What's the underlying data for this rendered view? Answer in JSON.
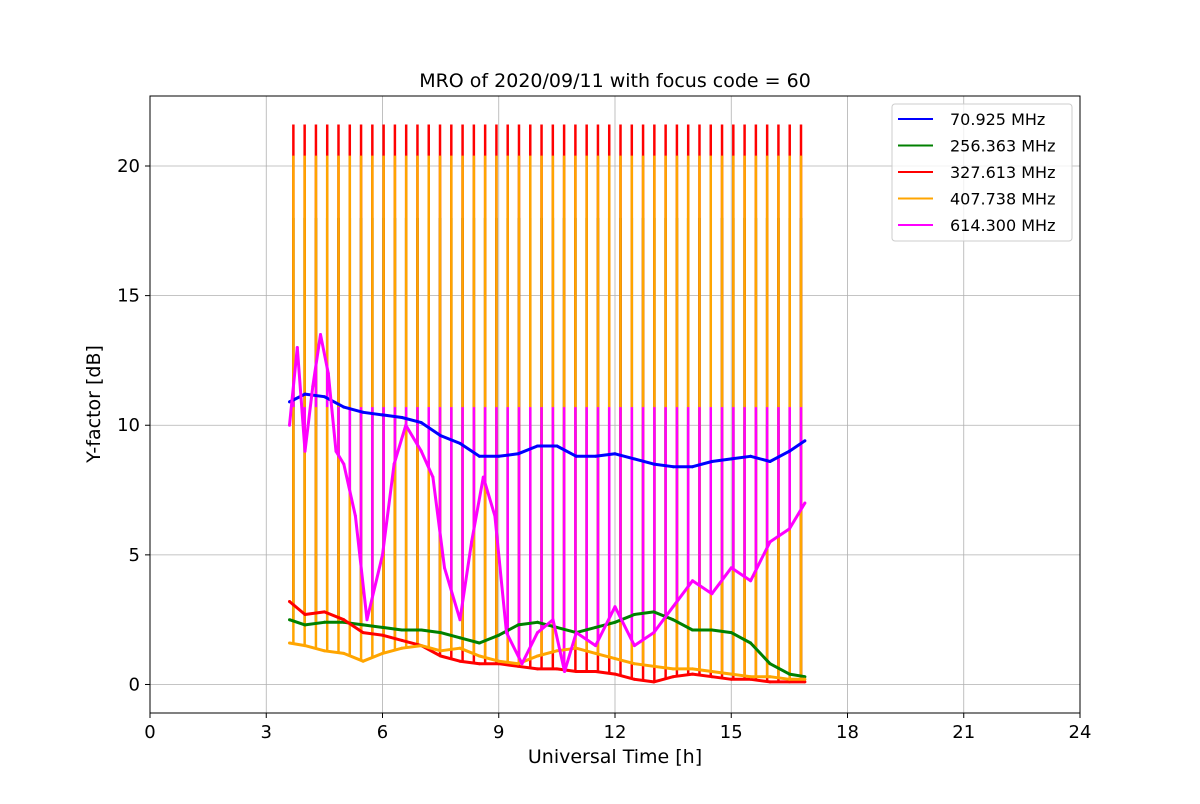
{
  "chart_data": {
    "type": "line",
    "title": "MRO of 2020/09/11 with focus code = 60",
    "xlabel": "Universal Time [h]",
    "ylabel": "Y-factor [dB]",
    "xlim": [
      0,
      24
    ],
    "ylim": [
      -1.1,
      22.7
    ],
    "xticks": [
      0,
      3,
      6,
      9,
      12,
      15,
      18,
      21,
      24
    ],
    "yticks": [
      0,
      5,
      10,
      15,
      20
    ],
    "grid": true,
    "legend_position": "top-right",
    "series": [
      {
        "name": " 70.925 MHz",
        "color": "#0000ff",
        "x": [
          3.6,
          4.0,
          4.5,
          5.0,
          5.5,
          6.0,
          6.5,
          7.0,
          7.5,
          8.0,
          8.5,
          9.0,
          9.5,
          10.0,
          10.5,
          11.0,
          11.5,
          12.0,
          12.5,
          13.0,
          13.5,
          14.0,
          14.5,
          15.0,
          15.5,
          16.0,
          16.5,
          16.9
        ],
        "y": [
          10.9,
          11.2,
          11.1,
          10.7,
          10.5,
          10.4,
          10.3,
          10.1,
          9.6,
          9.3,
          8.8,
          8.8,
          8.9,
          9.2,
          9.2,
          8.8,
          8.8,
          8.9,
          8.7,
          8.5,
          8.4,
          8.4,
          8.6,
          8.7,
          8.8,
          8.6,
          9.0,
          9.4
        ]
      },
      {
        "name": "256.363 MHz",
        "color": "#008000",
        "x": [
          3.6,
          4.0,
          4.5,
          5.0,
          5.5,
          6.0,
          6.5,
          7.0,
          7.5,
          8.0,
          8.5,
          9.0,
          9.5,
          10.0,
          10.5,
          11.0,
          11.5,
          12.0,
          12.5,
          13.0,
          13.5,
          14.0,
          14.5,
          15.0,
          15.5,
          16.0,
          16.5,
          16.9
        ],
        "y": [
          2.5,
          2.3,
          2.4,
          2.4,
          2.3,
          2.2,
          2.1,
          2.1,
          2.0,
          1.8,
          1.6,
          1.9,
          2.3,
          2.4,
          2.2,
          2.0,
          2.2,
          2.4,
          2.7,
          2.8,
          2.5,
          2.1,
          2.1,
          2.0,
          1.6,
          0.8,
          0.4,
          0.3
        ]
      },
      {
        "name": "327.613 MHz",
        "color": "#ff0000",
        "x": [
          3.6,
          4.0,
          4.5,
          5.0,
          5.5,
          6.0,
          6.5,
          7.0,
          7.5,
          8.0,
          8.5,
          9.0,
          9.5,
          10.0,
          10.5,
          11.0,
          11.5,
          12.0,
          12.5,
          13.0,
          13.5,
          14.0,
          14.5,
          15.0,
          15.5,
          16.0,
          16.5,
          16.9
        ],
        "y": [
          3.2,
          2.7,
          2.8,
          2.5,
          2.0,
          1.9,
          1.7,
          1.5,
          1.1,
          0.9,
          0.8,
          0.8,
          0.7,
          0.6,
          0.6,
          0.5,
          0.5,
          0.4,
          0.2,
          0.1,
          0.3,
          0.4,
          0.3,
          0.2,
          0.2,
          0.1,
          0.1,
          0.1
        ]
      },
      {
        "name": "407.738 MHz",
        "color": "#ffa500",
        "x": [
          3.6,
          4.0,
          4.5,
          5.0,
          5.5,
          6.0,
          6.5,
          7.0,
          7.5,
          8.0,
          8.5,
          9.0,
          9.5,
          10.0,
          10.5,
          11.0,
          11.5,
          12.0,
          12.5,
          13.0,
          13.5,
          14.0,
          14.5,
          15.0,
          15.5,
          16.0,
          16.5,
          16.9
        ],
        "y": [
          1.6,
          1.5,
          1.3,
          1.2,
          0.9,
          1.2,
          1.4,
          1.5,
          1.3,
          1.4,
          1.1,
          0.9,
          0.8,
          1.1,
          1.3,
          1.4,
          1.2,
          1.0,
          0.8,
          0.7,
          0.6,
          0.6,
          0.5,
          0.4,
          0.3,
          0.3,
          0.2,
          0.2
        ]
      },
      {
        "name": "614.300 MHz",
        "color": "#ff00ff",
        "x": [
          3.6,
          3.8,
          4.0,
          4.2,
          4.4,
          4.6,
          4.8,
          5.0,
          5.3,
          5.6,
          6.0,
          6.3,
          6.6,
          7.0,
          7.3,
          7.6,
          8.0,
          8.3,
          8.6,
          8.9,
          9.2,
          9.6,
          10.0,
          10.4,
          10.7,
          11.0,
          11.5,
          12.0,
          12.5,
          13.0,
          13.5,
          14.0,
          14.5,
          15.0,
          15.5,
          16.0,
          16.5,
          16.9
        ],
        "y": [
          10.0,
          13.0,
          9.0,
          11.5,
          13.5,
          12.0,
          9.0,
          8.5,
          6.5,
          2.5,
          5.0,
          8.5,
          10.0,
          9.0,
          8.0,
          4.5,
          2.5,
          5.5,
          8.0,
          6.5,
          2.0,
          0.8,
          2.0,
          2.5,
          0.5,
          2.0,
          1.5,
          3.0,
          1.5,
          2.0,
          3.0,
          4.0,
          3.5,
          4.5,
          4.0,
          5.5,
          6.0,
          7.0
        ]
      }
    ],
    "scan_spikes": {
      "start": 3.7,
      "end": 16.8,
      "count": 46,
      "peaks": {
        "70.925 MHz": 10.0,
        "256.363 MHz": 18.0,
        "327.613 MHz": 21.6,
        "407.738 MHz": 20.4,
        "614.300 MHz": 10.7
      }
    }
  }
}
